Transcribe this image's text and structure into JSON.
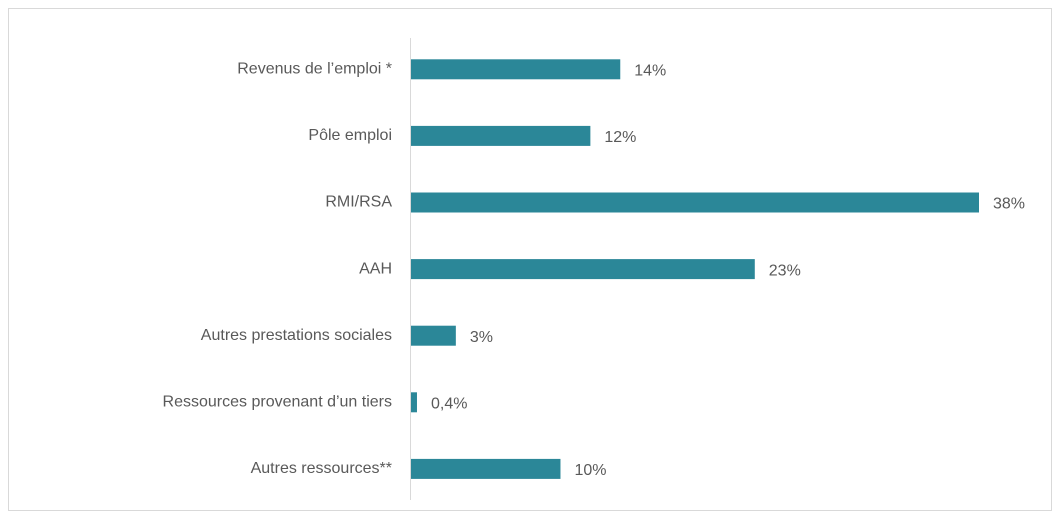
{
  "chart_data": {
    "type": "bar",
    "orientation": "horizontal",
    "categories": [
      "Revenus de l’emploi *",
      "Pôle emploi",
      "RMI/RSA",
      "AAH",
      "Autres prestations sociales",
      "Ressources provenant d’un tiers",
      "Autres ressources**"
    ],
    "values": [
      14,
      12,
      38,
      23,
      3,
      0.4,
      10
    ],
    "value_labels": [
      "14%",
      "12%",
      "38%",
      "23%",
      "3%",
      "0,4%",
      "10%"
    ],
    "color": "#2b8798"
  }
}
